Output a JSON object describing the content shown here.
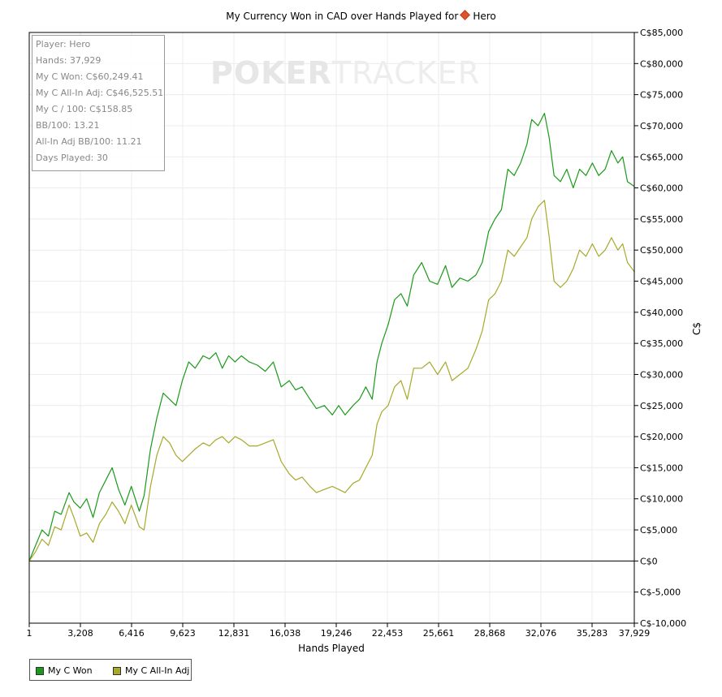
{
  "title": {
    "text": "My Currency Won in CAD over Hands Played for",
    "player": "Hero",
    "diamond_color": "#e0522a"
  },
  "watermark": {
    "bold": "POKER",
    "thin": "TRACKER"
  },
  "stats": {
    "player": "Player: Hero",
    "hands": "Hands: 37,929",
    "won": "My C Won: C$60,249.41",
    "allin_adj": "My C All-In Adj: C$46,525.51",
    "per100": "My C / 100: C$158.85",
    "bb100": "BB/100: 13.21",
    "allin_bb100": "All-In Adj BB/100: 11.21",
    "days": "Days Played: 30"
  },
  "legend": {
    "won_label": "My C Won",
    "allin_label": "My C All-In Adj"
  },
  "chart_data": {
    "type": "line",
    "xlabel": "Hands Played",
    "ylabel": "C$",
    "xlim": [
      1,
      37929
    ],
    "ylim": [
      -10000,
      85000
    ],
    "x_ticks": [
      "1",
      "3,208",
      "6,416",
      "9,623",
      "12,831",
      "16,038",
      "19,246",
      "22,453",
      "25,661",
      "28,868",
      "32,076",
      "35,283",
      "37,929"
    ],
    "x_tick_values": [
      1,
      3208,
      6416,
      9623,
      12831,
      16038,
      19246,
      22453,
      25661,
      28868,
      32076,
      35283,
      37929
    ],
    "y_ticks": [
      "C$-10,000",
      "C$-5,000",
      "C$0",
      "C$5,000",
      "C$10,000",
      "C$15,000",
      "C$20,000",
      "C$25,000",
      "C$30,000",
      "C$35,000",
      "C$40,000",
      "C$45,000",
      "C$50,000",
      "C$55,000",
      "C$60,000",
      "C$65,000",
      "C$70,000",
      "C$75,000",
      "C$80,000",
      "C$85,000"
    ],
    "y_tick_values": [
      -10000,
      -5000,
      0,
      5000,
      10000,
      15000,
      20000,
      25000,
      30000,
      35000,
      40000,
      45000,
      50000,
      55000,
      60000,
      65000,
      70000,
      75000,
      80000,
      85000
    ],
    "grid": true,
    "legend_position": "bottom-left",
    "series": [
      {
        "name": "My C Won",
        "color": "#1a9a1a",
        "x": [
          1,
          400,
          800,
          1200,
          1600,
          2000,
          2500,
          2800,
          3200,
          3600,
          4000,
          4400,
          4800,
          5200,
          5600,
          6000,
          6400,
          6900,
          7200,
          7600,
          8000,
          8400,
          8800,
          9200,
          9600,
          10000,
          10400,
          10900,
          11300,
          11700,
          12100,
          12500,
          12900,
          13300,
          13800,
          14300,
          14800,
          15300,
          15800,
          16300,
          16700,
          17100,
          17600,
          18000,
          18500,
          19000,
          19400,
          19800,
          20300,
          20700,
          21100,
          21500,
          21800,
          22100,
          22500,
          22900,
          23300,
          23700,
          24100,
          24600,
          25100,
          25600,
          26100,
          26500,
          27000,
          27500,
          28000,
          28400,
          28800,
          29200,
          29600,
          30000,
          30400,
          30800,
          31200,
          31500,
          31900,
          32300,
          32600,
          32900,
          33300,
          33700,
          34100,
          34500,
          34900,
          35300,
          35700,
          36100,
          36500,
          36900,
          37200,
          37500,
          37929
        ],
        "values": [
          0,
          2500,
          5000,
          4000,
          8000,
          7500,
          11000,
          9500,
          8500,
          10000,
          7000,
          11000,
          13000,
          15000,
          11500,
          9000,
          12000,
          8000,
          10500,
          18000,
          23000,
          27000,
          26000,
          25000,
          29000,
          32000,
          31000,
          33000,
          32500,
          33500,
          31000,
          33000,
          32000,
          33000,
          32000,
          31500,
          30500,
          32000,
          28000,
          29000,
          27500,
          28000,
          26000,
          24500,
          25000,
          23500,
          25000,
          23500,
          25000,
          26000,
          28000,
          26000,
          32000,
          35000,
          38000,
          42000,
          43000,
          41000,
          46000,
          48000,
          45000,
          44500,
          47500,
          44000,
          45500,
          45000,
          46000,
          48000,
          53000,
          55000,
          56500,
          63000,
          62000,
          64000,
          67000,
          71000,
          70000,
          72000,
          68000,
          62000,
          61000,
          63000,
          60000,
          63000,
          62000,
          64000,
          62000,
          63000,
          66000,
          64000,
          65000,
          61000,
          60249
        ]
      },
      {
        "name": "My C All-In Adj",
        "color": "#a8a82a",
        "x": [
          1,
          400,
          800,
          1200,
          1600,
          2000,
          2500,
          2800,
          3200,
          3600,
          4000,
          4400,
          4800,
          5200,
          5600,
          6000,
          6400,
          6900,
          7200,
          7600,
          8000,
          8400,
          8800,
          9200,
          9600,
          10000,
          10400,
          10900,
          11300,
          11700,
          12100,
          12500,
          12900,
          13300,
          13800,
          14300,
          14800,
          15300,
          15800,
          16300,
          16700,
          17100,
          17600,
          18000,
          18500,
          19000,
          19400,
          19800,
          20300,
          20700,
          21100,
          21500,
          21800,
          22100,
          22500,
          22900,
          23300,
          23700,
          24100,
          24600,
          25100,
          25600,
          26100,
          26500,
          27000,
          27500,
          28000,
          28400,
          28800,
          29200,
          29600,
          30000,
          30400,
          30800,
          31200,
          31500,
          31900,
          32300,
          32600,
          32900,
          33300,
          33700,
          34100,
          34500,
          34900,
          35300,
          35700,
          36100,
          36500,
          36900,
          37200,
          37500,
          37929
        ],
        "values": [
          0,
          1500,
          3500,
          2500,
          5500,
          5000,
          9000,
          7000,
          4000,
          4500,
          3000,
          6000,
          7500,
          9500,
          8000,
          6000,
          9000,
          5500,
          5000,
          12000,
          17000,
          20000,
          19000,
          17000,
          16000,
          17000,
          18000,
          19000,
          18500,
          19500,
          20000,
          19000,
          20000,
          19500,
          18500,
          18500,
          19000,
          19500,
          16000,
          14000,
          13000,
          13500,
          12000,
          11000,
          11500,
          12000,
          11500,
          11000,
          12500,
          13000,
          15000,
          17000,
          22000,
          24000,
          25000,
          28000,
          29000,
          26000,
          31000,
          31000,
          32000,
          30000,
          32000,
          29000,
          30000,
          31000,
          34000,
          37000,
          42000,
          43000,
          45000,
          50000,
          49000,
          50500,
          52000,
          55000,
          57000,
          58000,
          52000,
          45000,
          44000,
          45000,
          47000,
          50000,
          49000,
          51000,
          49000,
          50000,
          52000,
          50000,
          51000,
          48000,
          46525
        ]
      }
    ]
  }
}
